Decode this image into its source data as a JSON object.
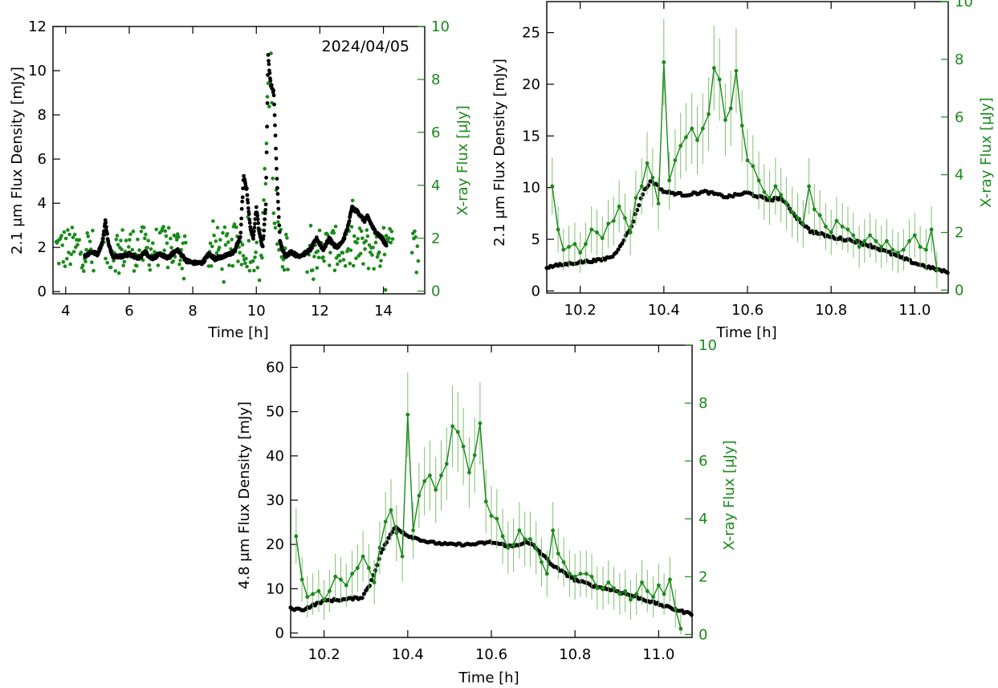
{
  "colors": {
    "ir": "#000000",
    "xray": "#1a8a1a",
    "axis": "#000000"
  },
  "chart_data": [
    {
      "type": "scatter",
      "panel": "top-left",
      "annotation": "2024/04/05",
      "xlabel": "Time [h]",
      "ylabel_left": "2.1 μm Flux Density [mJy]",
      "ylabel_right": "X-ray Flux [μJy]",
      "xlim": [
        3.6,
        15.3
      ],
      "ylim_left": [
        -0.1,
        12.0
      ],
      "ylim_right": [
        -0.1,
        10.0
      ],
      "x_ticks": [
        4,
        6,
        8,
        10,
        12,
        14
      ],
      "y_ticks_left": [
        0,
        2,
        4,
        6,
        8,
        10,
        12
      ],
      "y_ticks_right": [
        0,
        2,
        4,
        6,
        8,
        10
      ],
      "ir_anchors": [
        [
          4.6,
          1.6
        ],
        [
          4.8,
          1.8
        ],
        [
          5.0,
          1.7
        ],
        [
          5.15,
          2.2
        ],
        [
          5.25,
          3.2
        ],
        [
          5.35,
          2.1
        ],
        [
          5.5,
          1.6
        ],
        [
          5.8,
          1.6
        ],
        [
          6.0,
          1.7
        ],
        [
          6.3,
          1.5
        ],
        [
          6.5,
          1.8
        ],
        [
          6.7,
          1.5
        ],
        [
          7.0,
          1.7
        ],
        [
          7.2,
          1.5
        ],
        [
          7.5,
          1.9
        ],
        [
          7.8,
          1.4
        ],
        [
          8.0,
          1.3
        ],
        [
          8.3,
          1.3
        ],
        [
          8.5,
          1.7
        ],
        [
          8.7,
          1.5
        ],
        [
          9.0,
          1.6
        ],
        [
          9.3,
          1.8
        ],
        [
          9.5,
          2.5
        ],
        [
          9.6,
          5.2
        ],
        [
          9.7,
          4.6
        ],
        [
          9.8,
          3.0
        ],
        [
          9.9,
          2.4
        ],
        [
          10.0,
          3.8
        ],
        [
          10.1,
          2.6
        ],
        [
          10.2,
          2.0
        ],
        [
          10.3,
          4.0
        ],
        [
          10.37,
          10.7
        ],
        [
          10.45,
          9.4
        ],
        [
          10.55,
          9.0
        ],
        [
          10.65,
          5.0
        ],
        [
          10.75,
          2.2
        ],
        [
          10.9,
          1.6
        ],
        [
          11.1,
          1.8
        ],
        [
          11.3,
          1.6
        ],
        [
          11.5,
          1.7
        ],
        [
          11.7,
          1.9
        ],
        [
          11.9,
          2.4
        ],
        [
          12.1,
          1.9
        ],
        [
          12.3,
          2.4
        ],
        [
          12.5,
          2.0
        ],
        [
          12.7,
          2.2
        ],
        [
          12.9,
          3.0
        ],
        [
          13.0,
          3.8
        ],
        [
          13.2,
          3.6
        ],
        [
          13.4,
          3.2
        ],
        [
          13.5,
          3.4
        ],
        [
          13.7,
          2.8
        ],
        [
          13.9,
          2.5
        ],
        [
          14.1,
          2.1
        ]
      ],
      "xray_segments": [
        [
          3.7,
          4.9
        ],
        [
          5.2,
          7.8
        ],
        [
          8.5,
          11.0
        ],
        [
          11.6,
          14.3
        ],
        [
          14.9,
          15.1
        ]
      ],
      "xray_mean": 1.6,
      "xray_flare": [
        [
          10.25,
          3.0
        ],
        [
          10.35,
          6.5
        ],
        [
          10.45,
          8.0
        ],
        [
          10.55,
          4.0
        ],
        [
          10.65,
          2.0
        ]
      ]
    },
    {
      "type": "line",
      "panel": "top-right",
      "xlabel": "Time [h]",
      "ylabel_left": "2.1 μm Flux Density [mJy]",
      "ylabel_right": "X-ray Flux [μJy]",
      "xlim": [
        10.12,
        11.08
      ],
      "ylim_left": [
        -0.2,
        28.0
      ],
      "ylim_right": [
        -0.1,
        10.0
      ],
      "x_ticks": [
        10.2,
        10.4,
        10.6,
        10.8,
        11.0
      ],
      "y_ticks_left": [
        0,
        5,
        10,
        15,
        20,
        25
      ],
      "y_ticks_right": [
        0,
        2,
        4,
        6,
        8,
        10
      ],
      "ir_anchors": [
        [
          10.12,
          2.3
        ],
        [
          10.15,
          2.5
        ],
        [
          10.2,
          2.8
        ],
        [
          10.25,
          3.0
        ],
        [
          10.28,
          3.4
        ],
        [
          10.32,
          6.0
        ],
        [
          10.35,
          9.5
        ],
        [
          10.37,
          10.7
        ],
        [
          10.4,
          9.6
        ],
        [
          10.45,
          9.3
        ],
        [
          10.5,
          9.6
        ],
        [
          10.55,
          9.1
        ],
        [
          10.6,
          9.5
        ],
        [
          10.65,
          8.8
        ],
        [
          10.68,
          9.0
        ],
        [
          10.72,
          7.0
        ],
        [
          10.75,
          5.8
        ],
        [
          10.8,
          5.2
        ],
        [
          10.85,
          4.9
        ],
        [
          10.9,
          4.3
        ],
        [
          10.95,
          3.5
        ],
        [
          11.0,
          2.7
        ],
        [
          11.05,
          2.1
        ],
        [
          11.08,
          1.8
        ]
      ],
      "xray_points": [
        [
          10.133,
          3.6
        ],
        [
          10.147,
          2.1
        ],
        [
          10.16,
          1.4
        ],
        [
          10.173,
          1.5
        ],
        [
          10.187,
          1.6
        ],
        [
          10.2,
          1.3
        ],
        [
          10.213,
          1.6
        ],
        [
          10.227,
          2.1
        ],
        [
          10.24,
          2.0
        ],
        [
          10.253,
          1.8
        ],
        [
          10.267,
          2.3
        ],
        [
          10.28,
          2.4
        ],
        [
          10.293,
          2.9
        ],
        [
          10.307,
          2.5
        ],
        [
          10.32,
          2.0
        ],
        [
          10.333,
          3.2
        ],
        [
          10.347,
          3.6
        ],
        [
          10.36,
          4.4
        ],
        [
          10.373,
          3.9
        ],
        [
          10.387,
          3.0
        ],
        [
          10.4,
          7.9
        ],
        [
          10.413,
          3.8
        ],
        [
          10.427,
          4.5
        ],
        [
          10.44,
          5.0
        ],
        [
          10.453,
          5.3
        ],
        [
          10.467,
          5.6
        ],
        [
          10.48,
          5.2
        ],
        [
          10.493,
          5.6
        ],
        [
          10.507,
          6.1
        ],
        [
          10.52,
          7.7
        ],
        [
          10.533,
          7.3
        ],
        [
          10.547,
          5.9
        ],
        [
          10.56,
          6.3
        ],
        [
          10.573,
          7.6
        ],
        [
          10.587,
          5.7
        ],
        [
          10.6,
          4.5
        ],
        [
          10.613,
          4.3
        ],
        [
          10.627,
          3.8
        ],
        [
          10.64,
          3.4
        ],
        [
          10.653,
          3.2
        ],
        [
          10.667,
          3.6
        ],
        [
          10.68,
          3.3
        ],
        [
          10.693,
          3.0
        ],
        [
          10.707,
          2.7
        ],
        [
          10.72,
          2.5
        ],
        [
          10.733,
          2.3
        ],
        [
          10.747,
          3.6
        ],
        [
          10.76,
          2.8
        ],
        [
          10.773,
          2.6
        ],
        [
          10.787,
          2.2
        ],
        [
          10.8,
          2.0
        ],
        [
          10.813,
          2.4
        ],
        [
          10.827,
          2.2
        ],
        [
          10.84,
          2.1
        ],
        [
          10.853,
          1.9
        ],
        [
          10.867,
          1.5
        ],
        [
          10.88,
          1.7
        ],
        [
          10.893,
          1.9
        ],
        [
          10.907,
          1.7
        ],
        [
          10.92,
          1.5
        ],
        [
          10.933,
          1.7
        ],
        [
          10.947,
          1.4
        ],
        [
          10.96,
          1.3
        ],
        [
          10.973,
          1.4
        ],
        [
          10.987,
          1.7
        ],
        [
          11.0,
          1.9
        ],
        [
          11.013,
          1.5
        ],
        [
          11.027,
          1.4
        ],
        [
          11.04,
          2.1
        ],
        [
          11.053,
          0.7
        ]
      ]
    },
    {
      "type": "line",
      "panel": "bottom",
      "xlabel": "Time [h]",
      "ylabel_left": "4.8 μm Flux Density [mJy]",
      "ylabel_right": "X-ray Flux [μJy]",
      "xlim": [
        10.12,
        11.08
      ],
      "ylim_left": [
        -1.0,
        65.0
      ],
      "ylim_right": [
        -0.1,
        10.0
      ],
      "x_ticks": [
        10.2,
        10.4,
        10.6,
        10.8,
        11.0
      ],
      "y_ticks_left": [
        0,
        10,
        20,
        30,
        40,
        50,
        60
      ],
      "y_ticks_right": [
        0,
        2,
        4,
        6,
        8,
        10
      ],
      "ir_anchors": [
        [
          10.12,
          5.5
        ],
        [
          10.15,
          5.3
        ],
        [
          10.18,
          6.5
        ],
        [
          10.2,
          7.3
        ],
        [
          10.25,
          7.6
        ],
        [
          10.29,
          8.0
        ],
        [
          10.31,
          11.0
        ],
        [
          10.34,
          19.0
        ],
        [
          10.37,
          24.0
        ],
        [
          10.4,
          22.0
        ],
        [
          10.45,
          20.5
        ],
        [
          10.5,
          20.0
        ],
        [
          10.55,
          20.0
        ],
        [
          10.6,
          20.5
        ],
        [
          10.65,
          19.5
        ],
        [
          10.68,
          20.5
        ],
        [
          10.7,
          19.8
        ],
        [
          10.75,
          15.0
        ],
        [
          10.8,
          12.0
        ],
        [
          10.85,
          10.5
        ],
        [
          10.9,
          9.5
        ],
        [
          10.95,
          8.0
        ],
        [
          11.0,
          6.5
        ],
        [
          11.05,
          5.0
        ],
        [
          11.08,
          4.3
        ]
      ],
      "xray_points": [
        [
          10.133,
          3.4
        ],
        [
          10.147,
          1.9
        ],
        [
          10.16,
          1.3
        ],
        [
          10.173,
          1.4
        ],
        [
          10.187,
          1.5
        ],
        [
          10.2,
          1.2
        ],
        [
          10.213,
          1.5
        ],
        [
          10.227,
          2.0
        ],
        [
          10.24,
          1.9
        ],
        [
          10.253,
          1.7
        ],
        [
          10.267,
          2.1
        ],
        [
          10.28,
          2.3
        ],
        [
          10.293,
          2.7
        ],
        [
          10.307,
          2.3
        ],
        [
          10.32,
          1.8
        ],
        [
          10.333,
          3.0
        ],
        [
          10.347,
          3.9
        ],
        [
          10.36,
          4.3
        ],
        [
          10.373,
          3.5
        ],
        [
          10.387,
          2.7
        ],
        [
          10.4,
          7.6
        ],
        [
          10.413,
          3.6
        ],
        [
          10.427,
          4.8
        ],
        [
          10.44,
          5.3
        ],
        [
          10.453,
          5.5
        ],
        [
          10.467,
          5.0
        ],
        [
          10.48,
          5.5
        ],
        [
          10.493,
          5.9
        ],
        [
          10.507,
          7.2
        ],
        [
          10.52,
          7.0
        ],
        [
          10.533,
          6.5
        ],
        [
          10.547,
          5.6
        ],
        [
          10.56,
          6.2
        ],
        [
          10.573,
          7.3
        ],
        [
          10.587,
          4.6
        ],
        [
          10.6,
          4.1
        ],
        [
          10.613,
          4.0
        ],
        [
          10.627,
          3.4
        ],
        [
          10.64,
          3.0
        ],
        [
          10.653,
          3.1
        ],
        [
          10.667,
          3.6
        ],
        [
          10.68,
          3.3
        ],
        [
          10.693,
          3.3
        ],
        [
          10.707,
          3.0
        ],
        [
          10.72,
          2.5
        ],
        [
          10.733,
          2.1
        ],
        [
          10.747,
          3.6
        ],
        [
          10.76,
          2.8
        ],
        [
          10.773,
          2.5
        ],
        [
          10.787,
          2.1
        ],
        [
          10.8,
          2.0
        ],
        [
          10.813,
          2.1
        ],
        [
          10.827,
          2.1
        ],
        [
          10.84,
          2.0
        ],
        [
          10.853,
          1.6
        ],
        [
          10.867,
          1.6
        ],
        [
          10.88,
          1.8
        ],
        [
          10.893,
          1.6
        ],
        [
          10.907,
          1.4
        ],
        [
          10.92,
          1.5
        ],
        [
          10.933,
          1.2
        ],
        [
          10.947,
          1.4
        ],
        [
          10.96,
          1.8
        ],
        [
          10.973,
          1.5
        ],
        [
          10.987,
          1.3
        ],
        [
          11.0,
          1.7
        ],
        [
          11.013,
          1.4
        ],
        [
          11.027,
          1.9
        ],
        [
          11.04,
          0.9
        ],
        [
          11.053,
          0.2
        ]
      ]
    }
  ]
}
